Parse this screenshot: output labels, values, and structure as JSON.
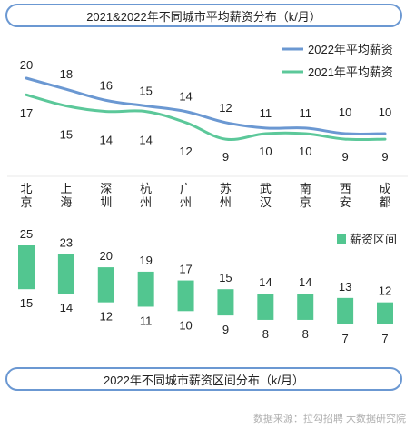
{
  "titles": {
    "top": "2021&2022年不同城市平均薪资分布（k/月）",
    "bottom": "2022年不同城市薪资区间分布（k/月）"
  },
  "source": "数据来源：拉勾招聘 大数据研究院",
  "colors": {
    "line2022": "#6b98d2",
    "line2021": "#5cc89a",
    "bar": "#52c690",
    "frame": "#6b98d2"
  },
  "chart_data": [
    {
      "type": "line",
      "categories": [
        "北京",
        "上海",
        "深圳",
        "杭州",
        "广州",
        "苏州",
        "武汉",
        "南京",
        "西安",
        "成都"
      ],
      "series": [
        {
          "name": "2022年平均薪资",
          "values": [
            20,
            18,
            16,
            15,
            14,
            12,
            11,
            11,
            10,
            10
          ]
        },
        {
          "name": "2021年平均薪资",
          "values": [
            17,
            15,
            14,
            14,
            12,
            9,
            10,
            10,
            9,
            9
          ]
        }
      ]
    },
    {
      "type": "bar",
      "categories": [
        "北京",
        "上海",
        "深圳",
        "杭州",
        "广州",
        "苏州",
        "武汉",
        "南京",
        "西安",
        "成都"
      ],
      "series": [
        {
          "name": "薪资区间",
          "low": [
            15,
            14,
            12,
            11,
            10,
            9,
            8,
            8,
            7,
            7
          ],
          "high": [
            25,
            23,
            20,
            19,
            17,
            15,
            14,
            14,
            13,
            12
          ]
        }
      ]
    }
  ]
}
